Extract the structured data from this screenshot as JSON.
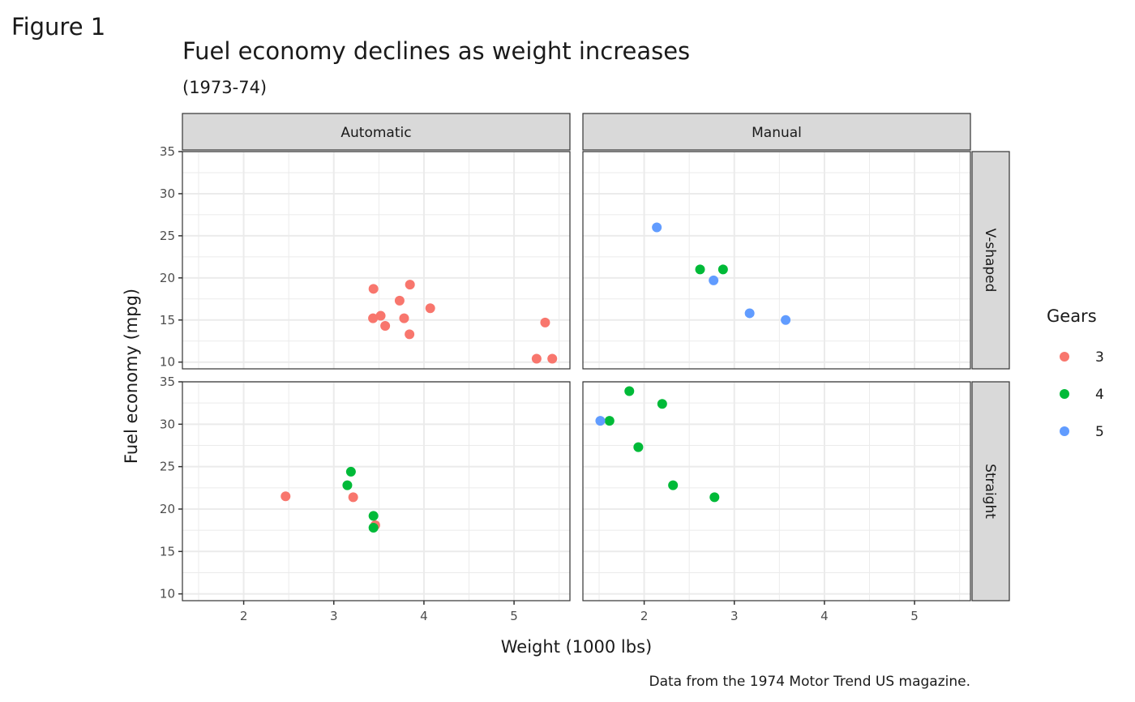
{
  "figure_label": "Figure 1",
  "chart_data": {
    "type": "scatter",
    "title": "Fuel economy declines as weight increases",
    "subtitle": "(1973-74)",
    "caption": "Data from the 1974 Motor Trend US magazine.",
    "xlabel": "Weight (1000 lbs)",
    "ylabel": "Fuel economy (mpg)",
    "xlim": [
      1.32,
      5.62
    ],
    "ylim": [
      9.2,
      35
    ],
    "x_ticks": [
      "2",
      "3",
      "4",
      "5"
    ],
    "y_ticks": [
      "10",
      "15",
      "20",
      "25",
      "30",
      "35"
    ],
    "grid": true,
    "facet_cols": [
      "Automatic",
      "Manual"
    ],
    "facet_rows": [
      "V-shaped",
      "Straight"
    ],
    "legend": {
      "title": "Gears",
      "position": "right",
      "entries": [
        {
          "label": "3",
          "color": "#F8766D"
        },
        {
          "label": "4",
          "color": "#00BA38"
        },
        {
          "label": "5",
          "color": "#619CFF"
        }
      ]
    },
    "panels": [
      {
        "col": "Automatic",
        "row": "V-shaped",
        "points": [
          {
            "x": 3.44,
            "y": 18.7,
            "gear": "3"
          },
          {
            "x": 3.57,
            "y": 14.3,
            "gear": "3"
          },
          {
            "x": 4.07,
            "y": 16.4,
            "gear": "3"
          },
          {
            "x": 3.73,
            "y": 17.3,
            "gear": "3"
          },
          {
            "x": 3.78,
            "y": 15.2,
            "gear": "3"
          },
          {
            "x": 5.25,
            "y": 10.4,
            "gear": "3"
          },
          {
            "x": 5.424,
            "y": 10.4,
            "gear": "3"
          },
          {
            "x": 5.345,
            "y": 14.7,
            "gear": "3"
          },
          {
            "x": 3.52,
            "y": 15.5,
            "gear": "3"
          },
          {
            "x": 3.435,
            "y": 15.2,
            "gear": "3"
          },
          {
            "x": 3.84,
            "y": 13.3,
            "gear": "3"
          },
          {
            "x": 3.845,
            "y": 19.2,
            "gear": "3"
          }
        ]
      },
      {
        "col": "Manual",
        "row": "V-shaped",
        "points": [
          {
            "x": 2.62,
            "y": 21.0,
            "gear": "4"
          },
          {
            "x": 2.875,
            "y": 21.0,
            "gear": "4"
          },
          {
            "x": 2.14,
            "y": 26.0,
            "gear": "5"
          },
          {
            "x": 3.17,
            "y": 15.8,
            "gear": "5"
          },
          {
            "x": 2.77,
            "y": 19.7,
            "gear": "5"
          },
          {
            "x": 3.57,
            "y": 15.0,
            "gear": "5"
          }
        ]
      },
      {
        "col": "Automatic",
        "row": "Straight",
        "points": [
          {
            "x": 3.215,
            "y": 21.4,
            "gear": "3"
          },
          {
            "x": 3.46,
            "y": 18.1,
            "gear": "3"
          },
          {
            "x": 2.465,
            "y": 21.5,
            "gear": "3"
          },
          {
            "x": 3.19,
            "y": 24.4,
            "gear": "4"
          },
          {
            "x": 3.15,
            "y": 22.8,
            "gear": "4"
          },
          {
            "x": 3.44,
            "y": 19.2,
            "gear": "4"
          },
          {
            "x": 3.44,
            "y": 17.8,
            "gear": "4"
          }
        ]
      },
      {
        "col": "Manual",
        "row": "Straight",
        "points": [
          {
            "x": 2.32,
            "y": 22.8,
            "gear": "4"
          },
          {
            "x": 2.2,
            "y": 32.4,
            "gear": "4"
          },
          {
            "x": 1.615,
            "y": 30.4,
            "gear": "4"
          },
          {
            "x": 1.835,
            "y": 33.9,
            "gear": "4"
          },
          {
            "x": 1.935,
            "y": 27.3,
            "gear": "4"
          },
          {
            "x": 2.78,
            "y": 21.4,
            "gear": "4"
          },
          {
            "x": 1.513,
            "y": 30.4,
            "gear": "5"
          }
        ]
      }
    ]
  }
}
